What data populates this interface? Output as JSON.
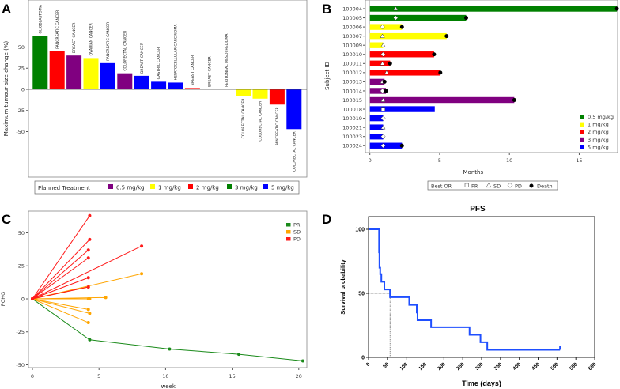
{
  "chart_data": [
    {
      "panel": "A",
      "type": "bar",
      "title": "",
      "ylabel": "Maximum tumour size change (%)",
      "ylim": [
        -50,
        63
      ],
      "yticks": [
        50,
        25,
        0,
        -25,
        -50
      ],
      "categories": [
        "GLIOBLASTOMA",
        "PANCREATIC CANCER",
        "BREAST CANCER",
        "OVARIAN CANCER",
        "PANCREATIC CANCER",
        "COLORECTAL CANCER",
        "BREAST CANCER",
        "GASTRIC CANCER",
        "HEPATOCELLULAR CARCINOMA",
        "BREAST CANCER",
        "BREAST CANCER",
        "PERITONEAL MESOTHELIOMA",
        "COLORECTAL CANCER",
        "COLORECTAL CANCER",
        "PANCREATIC CANCER",
        "COLORECTAL CANCER"
      ],
      "values": [
        63,
        45,
        40,
        37,
        31,
        19,
        16,
        9,
        8,
        1.5,
        0,
        0,
        -8,
        -11,
        -18,
        -47
      ],
      "treatment": [
        "3 mg/kg",
        "2 mg/kg",
        "0.5 mg/kg",
        "1 mg/kg",
        "5 mg/kg",
        "0.5 mg/kg",
        "5 mg/kg",
        "5 mg/kg",
        "5 mg/kg",
        "2 mg/kg",
        "",
        "",
        "1 mg/kg",
        "1 mg/kg",
        "2 mg/kg",
        "5 mg/kg"
      ],
      "legend_title": "Planned Treatment",
      "legend": [
        {
          "name": "0.5 mg/kg",
          "color": "#800080"
        },
        {
          "name": "1 mg/kg",
          "color": "#ffff00"
        },
        {
          "name": "2 mg/kg",
          "color": "#ff0000"
        },
        {
          "name": "3 mg/kg",
          "color": "#008000"
        },
        {
          "name": "5 mg/kg",
          "color": "#0000ff"
        }
      ],
      "legend_placement": "bottom"
    },
    {
      "panel": "B",
      "type": "bar",
      "orientation": "horizontal",
      "xlabel": "Months",
      "ylabel": "Subject ID",
      "xlim": [
        0,
        17.8
      ],
      "xticks": [
        0,
        5,
        10,
        15
      ],
      "subjects": [
        {
          "id": "100004",
          "dose": "0.5 mg/kg",
          "months": 17.7,
          "or": "SD",
          "or_at": 1.85,
          "death": true
        },
        {
          "id": "100005",
          "dose": "0.5 mg/kg",
          "months": 6.9,
          "or": "PD",
          "or_at": 1.85,
          "death": true
        },
        {
          "id": "100006",
          "dose": "1 mg/kg",
          "months": 2.3,
          "or": "PD",
          "or_at": 0.9,
          "death": true
        },
        {
          "id": "100007",
          "dose": "1 mg/kg",
          "months": 5.5,
          "or": "SD",
          "or_at": 0.9,
          "death": true
        },
        {
          "id": "100009",
          "dose": "1 mg/kg",
          "months": 0.95,
          "or": "SD",
          "or_at": 0.95,
          "death": false
        },
        {
          "id": "100010",
          "dose": "2 mg/kg",
          "months": 4.6,
          "or": "PD",
          "or_at": 0.95,
          "death": true
        },
        {
          "id": "100011",
          "dose": "2 mg/kg",
          "months": 1.45,
          "or": "SD",
          "or_at": 0.9,
          "death": true
        },
        {
          "id": "100012",
          "dose": "2 mg/kg",
          "months": 5.05,
          "or": "SD",
          "or_at": 1.2,
          "death": true
        },
        {
          "id": "100013",
          "dose": "3 mg/kg",
          "months": 1.05,
          "or": "SD",
          "or_at": 0.9,
          "death": true
        },
        {
          "id": "100014",
          "dose": "3 mg/kg",
          "months": 1.15,
          "or": "PD",
          "or_at": 0.9,
          "death": true
        },
        {
          "id": "100015",
          "dose": "3 mg/kg",
          "months": 10.35,
          "or": "SD",
          "or_at": 0.95,
          "death": true
        },
        {
          "id": "100018",
          "dose": "5 mg/kg",
          "months": 4.65,
          "or": "PR",
          "or_at": 0.95,
          "death": false
        },
        {
          "id": "100019",
          "dose": "5 mg/kg",
          "months": 0.95,
          "or": "PD",
          "or_at": 0.95,
          "death": false
        },
        {
          "id": "100021",
          "dose": "5 mg/kg",
          "months": 0.95,
          "or": "SD",
          "or_at": 0.95,
          "death": false
        },
        {
          "id": "100023",
          "dose": "5 mg/kg",
          "months": 0.95,
          "or": "PD",
          "or_at": 0.95,
          "death": false
        },
        {
          "id": "100024",
          "dose": "5 mg/kg",
          "months": 2.3,
          "or": "PD",
          "or_at": 0.95,
          "death": true
        }
      ],
      "legend": [
        {
          "name": "0.5 mg/kg",
          "color": "#008000"
        },
        {
          "name": "1 mg/kg",
          "color": "#ffff00"
        },
        {
          "name": "2 mg/kg",
          "color": "#ff0000"
        },
        {
          "name": "3 mg/kg",
          "color": "#800080"
        },
        {
          "name": "5 mg/kg",
          "color": "#0000ff"
        }
      ],
      "legend_placement": "bottom-right",
      "marker_legend_title": "Best OR",
      "marker_legend": [
        "PR",
        "SD",
        "PD",
        "Death"
      ]
    },
    {
      "panel": "C",
      "type": "line",
      "xlabel": "week",
      "ylabel": "PCHG",
      "xlim": [
        0,
        20.5
      ],
      "ylim": [
        -52,
        65
      ],
      "xticks": [
        0,
        5,
        10,
        15,
        20
      ],
      "yticks": [
        50,
        25,
        0,
        -25,
        -50
      ],
      "legend": [
        {
          "name": "PR",
          "color": "#1a8a1a"
        },
        {
          "name": "SD",
          "color": "#ffa500"
        },
        {
          "name": "PD",
          "color": "#ff1a1a"
        }
      ],
      "legend_placement": "top-right",
      "series": [
        {
          "group": "PD",
          "points": [
            [
              0,
              0
            ],
            [
              4.3,
              63
            ]
          ]
        },
        {
          "group": "PD",
          "points": [
            [
              0,
              0
            ],
            [
              4.3,
              45
            ]
          ]
        },
        {
          "group": "PD",
          "points": [
            [
              0,
              0
            ],
            [
              4.2,
              37
            ]
          ]
        },
        {
          "group": "PD",
          "points": [
            [
              0,
              0
            ],
            [
              4.2,
              31
            ]
          ]
        },
        {
          "group": "PD",
          "points": [
            [
              0,
              0
            ],
            [
              4.2,
              16
            ]
          ]
        },
        {
          "group": "PD",
          "points": [
            [
              0,
              0
            ],
            [
              8.2,
              40
            ]
          ]
        },
        {
          "group": "SD",
          "points": [
            [
              0,
              0
            ],
            [
              8.2,
              19
            ]
          ]
        },
        {
          "group": "SD",
          "points": [
            [
              0,
              0
            ],
            [
              4.2,
              9
            ]
          ]
        },
        {
          "group": "PD",
          "points": [
            [
              0,
              0
            ],
            [
              4.2,
              9
            ]
          ]
        },
        {
          "group": "SD",
          "points": [
            [
              0,
              0
            ],
            [
              5.5,
              1
            ]
          ]
        },
        {
          "group": "SD",
          "points": [
            [
              0,
              0
            ],
            [
              4.3,
              0
            ]
          ]
        },
        {
          "group": "SD",
          "points": [
            [
              0,
              0
            ],
            [
              4.2,
              0
            ]
          ]
        },
        {
          "group": "SD",
          "points": [
            [
              0,
              0
            ],
            [
              4.2,
              -8
            ]
          ]
        },
        {
          "group": "SD",
          "points": [
            [
              0,
              0
            ],
            [
              4.3,
              -11
            ]
          ]
        },
        {
          "group": "SD",
          "points": [
            [
              0,
              0
            ],
            [
              4.2,
              -18
            ]
          ]
        },
        {
          "group": "PR",
          "points": [
            [
              0,
              0
            ],
            [
              4.3,
              -31
            ],
            [
              10.3,
              -38
            ],
            [
              15.5,
              -42
            ],
            [
              20.3,
              -47
            ]
          ]
        }
      ]
    },
    {
      "panel": "D",
      "type": "line",
      "title": "PFS",
      "xlabel": "Time (days)",
      "ylabel": "Survival probability",
      "xlim": [
        0,
        600
      ],
      "ylim": [
        0,
        110
      ],
      "xticks": [
        0,
        50,
        100,
        150,
        200,
        250,
        300,
        350,
        400,
        450,
        500,
        550,
        600
      ],
      "yticks": [
        0,
        50,
        100
      ],
      "median_days": 57,
      "color": "#1f4fff",
      "steps": [
        [
          0,
          100
        ],
        [
          28,
          82
        ],
        [
          29,
          70
        ],
        [
          31,
          65
        ],
        [
          34,
          59
        ],
        [
          42,
          53
        ],
        [
          57,
          47
        ],
        [
          108,
          41
        ],
        [
          128,
          35
        ],
        [
          130,
          29
        ],
        [
          166,
          23.5
        ],
        [
          268,
          17.6
        ],
        [
          297,
          11.8
        ],
        [
          315,
          5.9
        ],
        [
          508,
          5.9
        ]
      ]
    }
  ],
  "panel_labels": [
    "A",
    "B",
    "C",
    "D"
  ]
}
